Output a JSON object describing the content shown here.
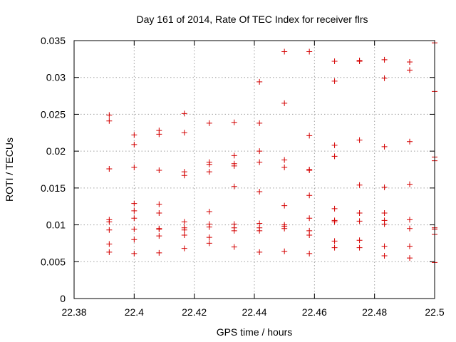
{
  "chart_data": {
    "type": "scatter",
    "title": "Day 161 of 2014, Rate Of TEC Index for receiver flrs",
    "xlabel": "GPS time / hours",
    "ylabel": "ROTI / TECUs",
    "xlim": [
      22.38,
      22.5
    ],
    "ylim": [
      0,
      0.035
    ],
    "grid": true,
    "marker": "plus",
    "color": "#d40000",
    "x_ticks": [
      22.38,
      22.4,
      22.42,
      22.44,
      22.46,
      22.48,
      22.5
    ],
    "x_tick_labels": [
      "22.38",
      "22.4",
      "22.42",
      "22.44",
      "22.46",
      "22.48",
      "22.5"
    ],
    "y_ticks": [
      0,
      0.005,
      0.01,
      0.015,
      0.02,
      0.025,
      0.03,
      0.035
    ],
    "y_tick_labels": [
      "0",
      "0.005",
      "0.01",
      "0.015",
      "0.02",
      "0.025",
      "0.03",
      "0.035"
    ],
    "points": [
      [
        22.3917,
        0.0249
      ],
      [
        22.3917,
        0.0241
      ],
      [
        22.3917,
        0.0176
      ],
      [
        22.3917,
        0.0107
      ],
      [
        22.3917,
        0.0104
      ],
      [
        22.3917,
        0.0093
      ],
      [
        22.3917,
        0.0074
      ],
      [
        22.3917,
        0.0063
      ],
      [
        22.4,
        0.0222
      ],
      [
        22.4,
        0.0209
      ],
      [
        22.4,
        0.0178
      ],
      [
        22.4,
        0.0129
      ],
      [
        22.4,
        0.0119
      ],
      [
        22.4,
        0.0109
      ],
      [
        22.4,
        0.0094
      ],
      [
        22.4,
        0.008
      ],
      [
        22.4,
        0.0061
      ],
      [
        22.4083,
        0.0228
      ],
      [
        22.4083,
        0.0223
      ],
      [
        22.4083,
        0.0174
      ],
      [
        22.4083,
        0.0128
      ],
      [
        22.4083,
        0.0116
      ],
      [
        22.4083,
        0.0095
      ],
      [
        22.4083,
        0.0094
      ],
      [
        22.4083,
        0.0085
      ],
      [
        22.4083,
        0.0062
      ],
      [
        22.4167,
        0.0251
      ],
      [
        22.4167,
        0.0225
      ],
      [
        22.4167,
        0.0172
      ],
      [
        22.4167,
        0.0167
      ],
      [
        22.4167,
        0.0104
      ],
      [
        22.4167,
        0.0096
      ],
      [
        22.4167,
        0.0093
      ],
      [
        22.4167,
        0.0086
      ],
      [
        22.4167,
        0.0068
      ],
      [
        22.425,
        0.0238
      ],
      [
        22.425,
        0.0185
      ],
      [
        22.425,
        0.0182
      ],
      [
        22.425,
        0.0172
      ],
      [
        22.425,
        0.0118
      ],
      [
        22.425,
        0.0101
      ],
      [
        22.425,
        0.0097
      ],
      [
        22.425,
        0.0083
      ],
      [
        22.425,
        0.0075
      ],
      [
        22.4333,
        0.0239
      ],
      [
        22.4333,
        0.0194
      ],
      [
        22.4333,
        0.0183
      ],
      [
        22.4333,
        0.018
      ],
      [
        22.4333,
        0.0152
      ],
      [
        22.4333,
        0.0101
      ],
      [
        22.4333,
        0.0096
      ],
      [
        22.4333,
        0.0092
      ],
      [
        22.4333,
        0.007
      ],
      [
        22.4417,
        0.0294
      ],
      [
        22.4417,
        0.0238
      ],
      [
        22.4417,
        0.02
      ],
      [
        22.4417,
        0.0185
      ],
      [
        22.4417,
        0.0145
      ],
      [
        22.4417,
        0.0102
      ],
      [
        22.4417,
        0.0096
      ],
      [
        22.4417,
        0.0092
      ],
      [
        22.4417,
        0.0063
      ],
      [
        22.45,
        0.0335
      ],
      [
        22.45,
        0.0265
      ],
      [
        22.45,
        0.0188
      ],
      [
        22.45,
        0.0178
      ],
      [
        22.45,
        0.0126
      ],
      [
        22.45,
        0.01
      ],
      [
        22.45,
        0.0098
      ],
      [
        22.45,
        0.0095
      ],
      [
        22.45,
        0.0064
      ],
      [
        22.4583,
        0.0335
      ],
      [
        22.4583,
        0.0221
      ],
      [
        22.4583,
        0.0175
      ],
      [
        22.4583,
        0.0174
      ],
      [
        22.4583,
        0.014
      ],
      [
        22.4583,
        0.0109
      ],
      [
        22.4583,
        0.0092
      ],
      [
        22.4583,
        0.0086
      ],
      [
        22.4583,
        0.0061
      ],
      [
        22.4667,
        0.0322
      ],
      [
        22.4667,
        0.0295
      ],
      [
        22.4667,
        0.0208
      ],
      [
        22.4667,
        0.0193
      ],
      [
        22.4667,
        0.0122
      ],
      [
        22.4667,
        0.0106
      ],
      [
        22.4667,
        0.0104
      ],
      [
        22.4667,
        0.0078
      ],
      [
        22.4667,
        0.0069
      ],
      [
        22.475,
        0.0323
      ],
      [
        22.475,
        0.0322
      ],
      [
        22.475,
        0.0215
      ],
      [
        22.475,
        0.0154
      ],
      [
        22.475,
        0.0116
      ],
      [
        22.475,
        0.0105
      ],
      [
        22.475,
        0.0079
      ],
      [
        22.475,
        0.0069
      ],
      [
        22.4833,
        0.0324
      ],
      [
        22.4833,
        0.0299
      ],
      [
        22.4833,
        0.0206
      ],
      [
        22.4833,
        0.0151
      ],
      [
        22.4833,
        0.0116
      ],
      [
        22.4833,
        0.0106
      ],
      [
        22.4833,
        0.0101
      ],
      [
        22.4833,
        0.0071
      ],
      [
        22.4833,
        0.0058
      ],
      [
        22.4917,
        0.0321
      ],
      [
        22.4917,
        0.031
      ],
      [
        22.4917,
        0.0213
      ],
      [
        22.4917,
        0.0155
      ],
      [
        22.4917,
        0.0107
      ],
      [
        22.4917,
        0.0095
      ],
      [
        22.4917,
        0.0071
      ],
      [
        22.4917,
        0.0055
      ],
      [
        22.5,
        0.0347
      ],
      [
        22.5,
        0.0281
      ],
      [
        22.5,
        0.0192
      ],
      [
        22.5,
        0.0187
      ],
      [
        22.5,
        0.0096
      ],
      [
        22.5,
        0.0094
      ],
      [
        22.5,
        0.0087
      ],
      [
        22.5,
        0.0049
      ]
    ]
  }
}
